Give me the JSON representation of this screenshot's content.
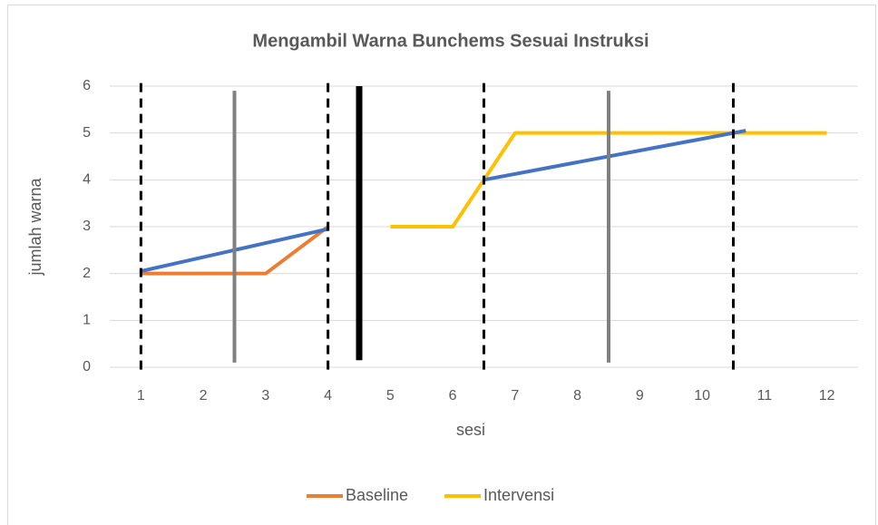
{
  "chart_data": {
    "type": "line",
    "title": "Mengambil Warna Bunchems Sesuai Instruksi",
    "x_label": "sesi",
    "y_label": "jumlah warna",
    "x": [
      1,
      2,
      3,
      4,
      5,
      6,
      7,
      8,
      9,
      10,
      11,
      12
    ],
    "xlim": [
      0.5,
      12.5
    ],
    "xticks": [
      1,
      2,
      3,
      4,
      5,
      6,
      7,
      8,
      9,
      10,
      11,
      12
    ],
    "ylim": [
      0,
      6
    ],
    "yticks": [
      0,
      1,
      2,
      3,
      4,
      5,
      6
    ],
    "grid": true,
    "legend": "bottom",
    "series": [
      {
        "name": "Baseline",
        "color": "#ED7D31",
        "values": [
          2,
          2,
          2,
          3,
          null,
          null,
          null,
          null,
          null,
          null,
          null,
          null
        ]
      },
      {
        "name": "Intervensi",
        "color": "#FFC000",
        "values": [
          null,
          null,
          null,
          null,
          3,
          3,
          5,
          5,
          5,
          5,
          5,
          5
        ]
      }
    ],
    "trend_lines": [
      {
        "color": "#4472C4",
        "x": [
          1,
          4
        ],
        "values": [
          2.05,
          2.95
        ]
      },
      {
        "color": "#4472C4",
        "x": [
          6.5,
          10.7
        ],
        "values": [
          4,
          5.05
        ]
      }
    ],
    "vlines": [
      {
        "x": 1,
        "y": [
          -0.05,
          6.1
        ],
        "color": "#000000",
        "style": "dashed"
      },
      {
        "x": 4,
        "y": [
          -0.05,
          6.1
        ],
        "color": "#000000",
        "style": "dashed"
      },
      {
        "x": 6.5,
        "y": [
          -0.05,
          6.1
        ],
        "color": "#000000",
        "style": "dashed"
      },
      {
        "x": 10.5,
        "y": [
          -0.05,
          6.1
        ],
        "color": "#000000",
        "style": "dashed"
      },
      {
        "x": 2.5,
        "y": [
          0.1,
          5.9
        ],
        "color": "#808080",
        "style": "solid"
      },
      {
        "x": 8.5,
        "y": [
          0.1,
          5.9
        ],
        "color": "#808080",
        "style": "solid"
      },
      {
        "x": 4.5,
        "y": [
          0.15,
          6
        ],
        "color": "#000000",
        "style": "thick"
      }
    ]
  }
}
